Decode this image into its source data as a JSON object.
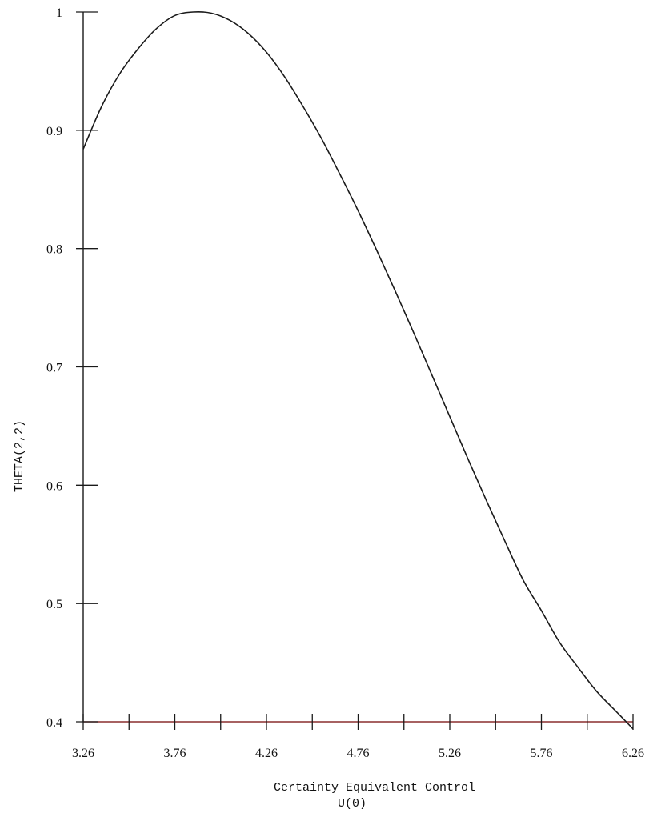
{
  "chart_data": {
    "type": "line",
    "title": "",
    "xlabel": "Certainty Equivalent Control",
    "xlabel2": "U(0)",
    "ylabel": "THETA(2,2)",
    "xlim": [
      3.26,
      6.26
    ],
    "ylim": [
      0.4,
      1.0
    ],
    "x_ticks_major": [
      3.26,
      3.76,
      4.26,
      4.76,
      5.26,
      5.76,
      6.26
    ],
    "x_tick_labels": [
      "3.26",
      "3.76",
      "4.26",
      "4.76",
      "5.26",
      "5.76",
      "6.26"
    ],
    "x_ticks_minor": [
      3.51,
      4.01,
      4.51,
      5.01,
      5.51,
      6.01
    ],
    "y_ticks": [
      0.4,
      0.5,
      0.6,
      0.7,
      0.8,
      0.9,
      1.0
    ],
    "y_tick_labels": [
      "0.4",
      "0.5",
      "0.6",
      "0.7",
      "0.8",
      "0.9",
      "1"
    ],
    "grid": false,
    "legend": "none",
    "colors": {
      "line": "#1a1a1a",
      "axis": "#1a1a1a",
      "bottom_axis": "#8a2f2f"
    },
    "series": [
      {
        "x": [
          3.26,
          3.36,
          3.46,
          3.56,
          3.66,
          3.76,
          3.86,
          3.96,
          4.06,
          4.16,
          4.26,
          4.36,
          4.46,
          4.56,
          4.66,
          4.76,
          4.86,
          4.96,
          5.06,
          5.16,
          5.26,
          5.36,
          5.46,
          5.56,
          5.66,
          5.76,
          5.86,
          5.96,
          6.06,
          6.16,
          6.26
        ],
        "y": [
          0.884,
          0.92,
          0.948,
          0.969,
          0.986,
          0.997,
          1.0,
          0.999,
          0.993,
          0.982,
          0.966,
          0.945,
          0.92,
          0.893,
          0.863,
          0.832,
          0.799,
          0.765,
          0.73,
          0.694,
          0.658,
          0.622,
          0.587,
          0.553,
          0.52,
          0.494,
          0.467,
          0.446,
          0.426,
          0.41,
          0.394
        ]
      }
    ]
  }
}
